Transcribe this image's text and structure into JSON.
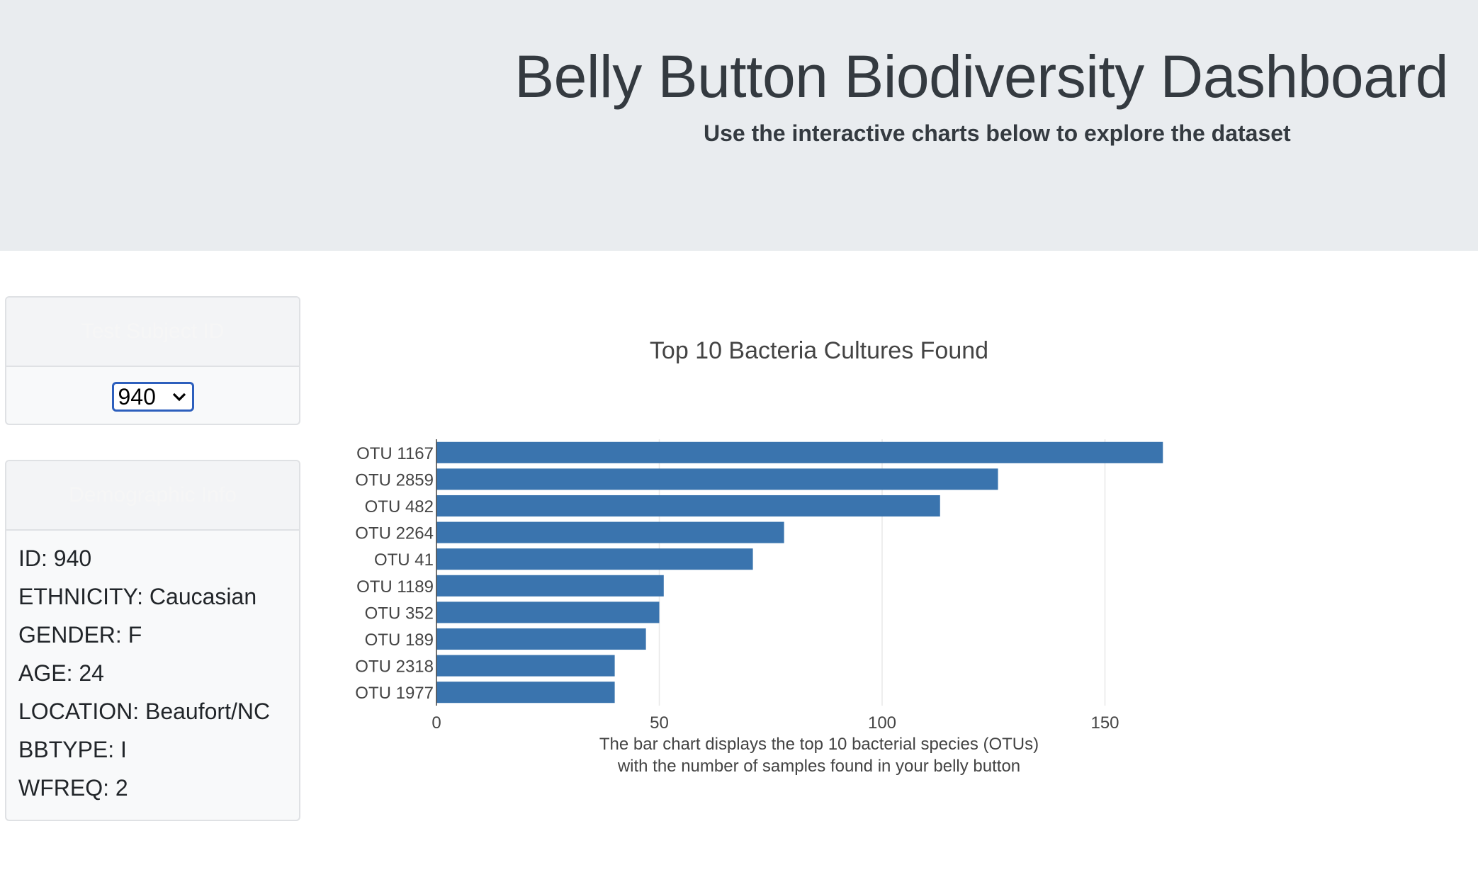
{
  "header": {
    "title": "Belly Button Biodiversity Dashboard",
    "subtitle": "Use the interactive charts below to explore the dataset"
  },
  "selector": {
    "header": "Test Subject ID",
    "selected_value": "940"
  },
  "demographics": {
    "header": "Demographic Info",
    "lines": [
      "ID: 940",
      "ETHNICITY: Caucasian",
      "GENDER: F",
      "AGE: 24",
      "LOCATION: Beaufort/NC",
      "BBTYPE: I",
      "WFREQ: 2"
    ]
  },
  "colors": {
    "bar": "#3a74ae",
    "header_bg": "#e9ecef",
    "select_border": "#2d5fbd"
  },
  "chart_data": {
    "type": "bar",
    "orientation": "horizontal",
    "title": "Top 10 Bacteria Cultures Found",
    "xlabel_lines": [
      "The bar chart displays the top 10 bacterial species (OTUs)",
      "with the number of samples found in your belly button"
    ],
    "ylabel": "",
    "categories": [
      "OTU 1167",
      "OTU 2859",
      "OTU 482",
      "OTU 2264",
      "OTU 41",
      "OTU 1189",
      "OTU 352",
      "OTU 189",
      "OTU 2318",
      "OTU 1977"
    ],
    "values": [
      163,
      126,
      113,
      78,
      71,
      51,
      50,
      47,
      40,
      40
    ],
    "xlim": [
      0,
      165
    ],
    "xticks": [
      0,
      50,
      100,
      150
    ],
    "grid": true
  }
}
